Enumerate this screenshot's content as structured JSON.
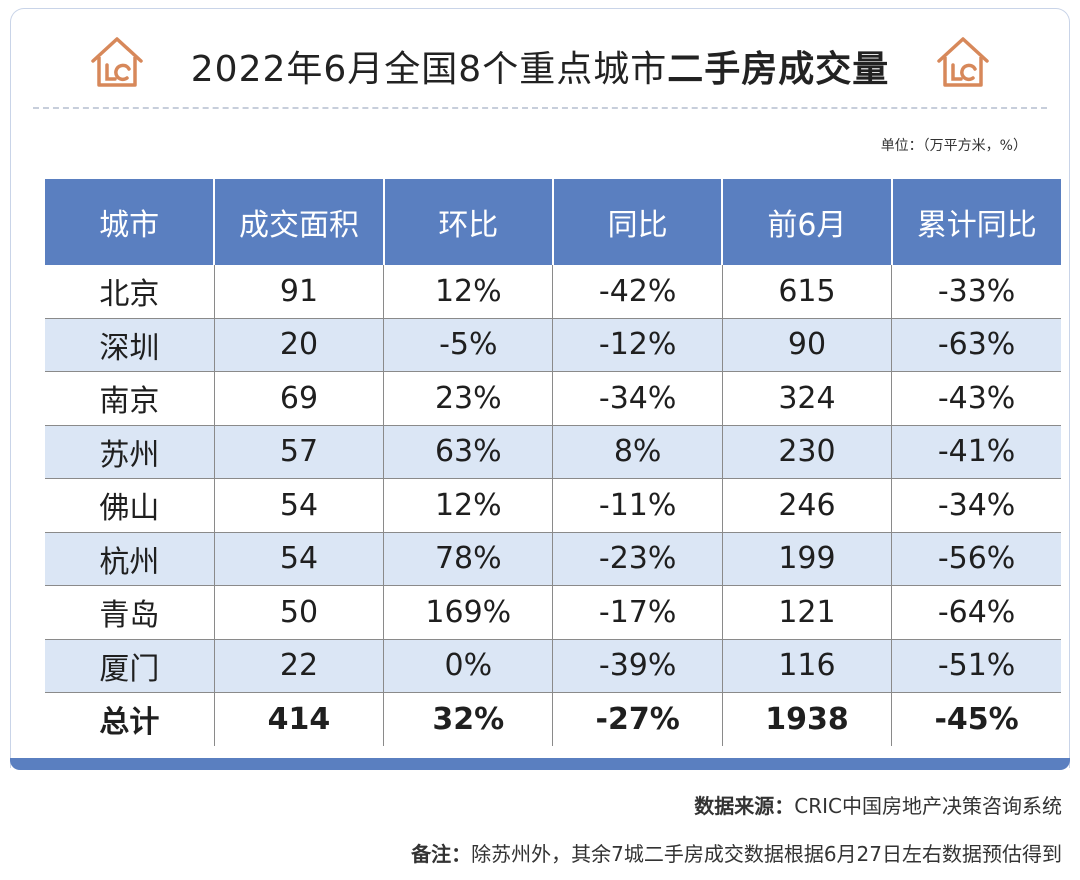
{
  "title": {
    "normal": "2022年6月全国8个重点城市",
    "bold": "二手房成交量"
  },
  "unit": "单位：（万平方米，%）",
  "table": {
    "headers": [
      "城市",
      "成交面积",
      "环比",
      "同比",
      "前6月",
      "累计同比"
    ],
    "rows": [
      [
        "北京",
        "91",
        "12%",
        "-42%",
        "615",
        "-33%"
      ],
      [
        "深圳",
        "20",
        "-5%",
        "-12%",
        "90",
        "-63%"
      ],
      [
        "南京",
        "69",
        "23%",
        "-34%",
        "324",
        "-43%"
      ],
      [
        "苏州",
        "57",
        "63%",
        "8%",
        "230",
        "-41%"
      ],
      [
        "佛山",
        "54",
        "12%",
        "-11%",
        "246",
        "-34%"
      ],
      [
        "杭州",
        "54",
        "78%",
        "-23%",
        "199",
        "-56%"
      ],
      [
        "青岛",
        "50",
        "169%",
        "-17%",
        "121",
        "-64%"
      ],
      [
        "厦门",
        "22",
        "0%",
        "-39%",
        "116",
        "-51%"
      ]
    ],
    "total": [
      "总计",
      "414",
      "32%",
      "-27%",
      "1938",
      "-45%"
    ]
  },
  "source": {
    "label": "数据来源：",
    "value": "CRIC中国房地产决策咨询系统"
  },
  "note": {
    "label": "备注：",
    "value": "除苏州外，其余7城二手房成交数据根据6月27日左右数据预估得到"
  },
  "colors": {
    "header_bg": "#5a7fc0",
    "alt_row_bg": "#dbe6f5",
    "logo_color": "#d7885a"
  },
  "icons": [
    "house-logo-icon",
    "house-logo-icon"
  ]
}
